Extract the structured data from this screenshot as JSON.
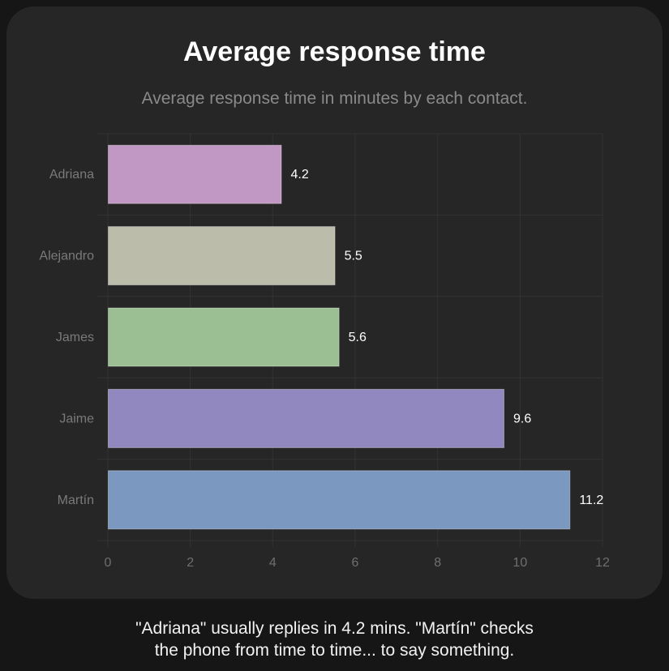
{
  "card": {
    "title": "Average response time",
    "subtitle": "Average response time in minutes by each contact."
  },
  "caption": {
    "line1": "\"Adriana\" usually replies in 4.2 mins. \"Martín\" checks",
    "line2": "the phone from time to time... to say something."
  },
  "chart_data": {
    "type": "bar",
    "orientation": "horizontal",
    "title": "Average response time",
    "subtitle": "Average response time in minutes by each contact.",
    "xlabel": "",
    "ylabel": "",
    "categories": [
      "Adriana",
      "Alejandro",
      "James",
      "Jaime",
      "Martín"
    ],
    "values": [
      4.2,
      5.5,
      5.6,
      9.6,
      11.2
    ],
    "value_labels": [
      "4.2",
      "5.5",
      "5.6",
      "9.6",
      "11.2"
    ],
    "colors": [
      "#c197c3",
      "#bbbcaa",
      "#9bbf93",
      "#9188c0",
      "#7b98c1"
    ],
    "xlim": [
      0,
      12
    ],
    "xticks": [
      0,
      2,
      4,
      6,
      8,
      10,
      12
    ],
    "xtick_labels": [
      "0",
      "2",
      "4",
      "6",
      "8",
      "10",
      "12"
    ],
    "grid": true,
    "legend": "none"
  }
}
